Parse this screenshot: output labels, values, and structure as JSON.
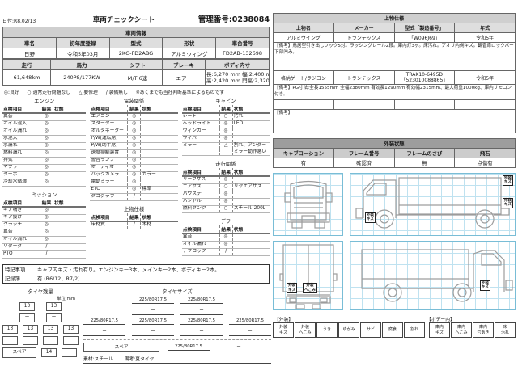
{
  "header": {
    "date": "日付:R8.02/13",
    "title": "車両チェックシート",
    "control_number": "管理番号:0238084"
  },
  "vehicle_info": {
    "section_title": "車両情報",
    "row1_headers": [
      "車名",
      "初年度登録",
      "型式",
      "形状",
      "車台番号"
    ],
    "row1_values": [
      "日野",
      "令和5年03月",
      "2KG-FD2ABG",
      "アルミウィング",
      "FD2AB-132698"
    ],
    "row2_headers": [
      "走行",
      "馬力",
      "シフト",
      "ブレーキ",
      "ボディ内寸"
    ],
    "row2_values": [
      "61,648km",
      "240PS/177KW",
      "M/T 6速",
      "エアー"
    ],
    "body_dims_line1": "長:6,270 mm 幅:2,400 mm",
    "body_dims_line2": "高:2,420 mm 門高:2,320 mm"
  },
  "legend": {
    "items": [
      "◎:良好",
      "○:通常走行問題なし",
      "△:要修理",
      "/:装備無し"
    ],
    "note": "※あくまでも当社判断基準によるものです"
  },
  "inspection": {
    "col_headers": [
      "点検項目",
      "結果",
      "状態"
    ],
    "sections": [
      {
        "id": "engine",
        "title": "エンジン",
        "rows": [
          [
            "異音",
            "◎",
            ""
          ],
          [
            "オイル混入",
            "◎",
            ""
          ],
          [
            "オイル漏れ",
            "◎",
            ""
          ],
          [
            "水混入",
            "◎",
            ""
          ],
          [
            "水漏れ",
            "◎",
            ""
          ],
          [
            "燃料漏れ",
            "◎",
            ""
          ],
          [
            "排気",
            "◎",
            ""
          ],
          [
            "マフラー",
            "◎",
            ""
          ],
          [
            "ターボ",
            "◎",
            ""
          ],
          [
            "冷却水循環",
            "◎",
            ""
          ]
        ]
      },
      {
        "id": "mission",
        "title": "ミッション",
        "rows": [
          [
            "ギア鳴き",
            "◎",
            ""
          ],
          [
            "ギア抜け",
            "◎",
            ""
          ],
          [
            "クラッチ",
            "◎",
            ""
          ],
          [
            "異音",
            "◎",
            ""
          ],
          [
            "オイル漏れ",
            "◎",
            ""
          ],
          [
            "リターダ",
            "/",
            ""
          ],
          [
            "PTO",
            "/",
            ""
          ]
        ]
      },
      {
        "id": "electrical",
        "title": "電装関係",
        "rows": [
          [
            "エアコン",
            "◎",
            ""
          ],
          [
            "スターター",
            "◎",
            ""
          ],
          [
            "オルタネーター",
            "◎",
            ""
          ],
          [
            "P/W(運転席)",
            "◎",
            ""
          ],
          [
            "P/W(助手席)",
            "◎",
            ""
          ],
          [
            "速度抑制装置",
            "◎",
            ""
          ],
          [
            "警告ランプ",
            "◎",
            ""
          ],
          [
            "オーディオ",
            "◎",
            ""
          ],
          [
            "バックカメラ",
            "◎",
            "カラー"
          ],
          [
            "電動ミラー",
            "◎",
            ""
          ],
          [
            "ETC",
            "◎",
            "標準"
          ],
          [
            "タコグラフ",
            "/",
            ""
          ]
        ]
      },
      {
        "id": "body-mini",
        "title": "上物仕様",
        "rows": [
          [
            "床材質",
            "/",
            "木材"
          ]
        ]
      },
      {
        "id": "cabin",
        "title": "キャビン",
        "rows": [
          [
            "シート",
            "○",
            "汚れ"
          ],
          [
            "ヘッドライト",
            "◎",
            "LED"
          ],
          [
            "ウィンカー",
            "◎",
            ""
          ],
          [
            "ワイパー",
            "◎",
            ""
          ],
          [
            "ミラー",
            "△",
            "割れ、アンダーミラー動作悪い"
          ]
        ]
      },
      {
        "id": "driving",
        "title": "走行関係",
        "rows": [
          [
            "リーフサス",
            "◎",
            ""
          ],
          [
            "エアサス",
            "○",
            "リヤエアサス"
          ],
          [
            "パワステ",
            "◎",
            ""
          ],
          [
            "ハンドル",
            "◎",
            ""
          ],
          [
            "燃料タンク",
            "○",
            "スチール 200L"
          ]
        ]
      },
      {
        "id": "diff",
        "title": "デフ",
        "rows": [
          [
            "異音",
            "◎",
            ""
          ],
          [
            "オイル漏れ",
            "◎",
            ""
          ],
          [
            "デフロック",
            "/",
            ""
          ]
        ]
      }
    ]
  },
  "notes": {
    "label": "特記事項",
    "text": "キャブ内キズ・汚れ有り。エンジンキー3本、メインキー2本、ボディキー2本。",
    "record_label": "記録簿",
    "record_value": "有 (R6/12、R7/2)"
  },
  "tire_tread": {
    "title": "タイヤ残量",
    "unit": "単位:mm",
    "front": [
      "13",
      "13"
    ],
    "row2": [
      "ー",
      "ー"
    ],
    "rear": [
      "13",
      "13",
      "13",
      "13"
    ],
    "row4": [
      "ー",
      "ー",
      "ー",
      "ー"
    ],
    "spare_label": "スペア",
    "spare": [
      "14",
      "ー"
    ]
  },
  "tire_size": {
    "title": "タイヤサイズ",
    "front": [
      "225/80R17.5",
      "225/80R17.5"
    ],
    "row2": [
      "ー",
      "ー"
    ],
    "row3": [
      "225/80R17.5",
      "225/80R17.5",
      "225/80R17.5",
      "225/80R17.5"
    ],
    "row4": [
      "ー",
      "ー",
      "ー",
      "ー"
    ],
    "spare_label": "スペア",
    "spare": [
      "225/80R17.5",
      "ー"
    ],
    "material": "素材:スチール",
    "note": "備考:夏タイヤ"
  },
  "body_spec": {
    "title": "上物仕様",
    "headers": [
      "上物名",
      "メーカー",
      "型式「製造番号」",
      "年式"
    ],
    "rows": [
      {
        "cells": [
          "アルミウイング",
          "トランテックス",
          "「W096J69」",
          "令和5年"
        ],
        "remark": "【備考】鳥居型引き出しフック5対。ラッシングレール2段。庫内灯3ヶ。床汚れ。アオリ内側キズ。観音扉ロックバー下部凹み。"
      },
      {
        "cells": [
          "格納ゲート/ラジコン",
          "トランテックス",
          "TRAK10-6495D「523010088865」",
          "令和5年"
        ],
        "remark": "【備考】PG寸法:全長1555mm 全幅2380mm 有効長1290mm 有効幅2315mm、最大荷重1000kg、庫内リモコン付き。"
      },
      {
        "cells": [
          "",
          "",
          "",
          ""
        ],
        "remark": "【備考】"
      }
    ]
  },
  "exterior_status": {
    "title": "外装状態",
    "headers": [
      "キャブコーション",
      "フレーム番号",
      "フレームのさび",
      "飛石"
    ],
    "values": [
      "有",
      "確認済",
      "無",
      "点傷有"
    ]
  },
  "diagrams": {
    "anno": {
      "cab_step": "外装\nキズ",
      "side_top_right": "外装\nキズ",
      "side_mid_right": "外装\nキズ",
      "rear_scratch": "外装\nキズ",
      "rear_dent": "外装\nへこみ",
      "left_cab": "外装\nキズ"
    }
  },
  "damage_legend": {
    "group1_label": "【外装】",
    "group1": [
      "外装\nキズ",
      "外装\nへこみ",
      "うき",
      "ゆがみ",
      "サビ",
      "腐食",
      "割れ"
    ],
    "group2_label": "【ボデー内】",
    "group2": [
      "庫内\nキズ",
      "庫内\nへこみ",
      "庫内\n穴あき",
      "床\n汚れ"
    ]
  }
}
